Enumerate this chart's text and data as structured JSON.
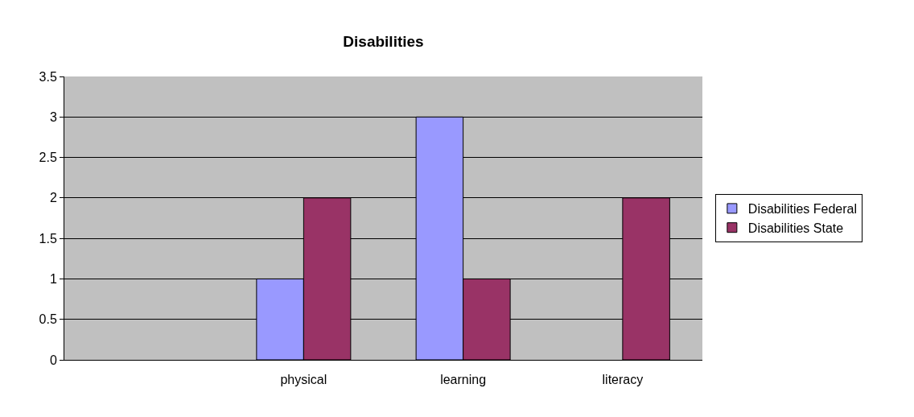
{
  "chart_data": {
    "type": "bar",
    "title": "Disabilities",
    "categories": [
      null,
      "physical",
      "learning",
      "literacy"
    ],
    "series": [
      {
        "name": "Disabilities Federal",
        "color": "#9999ff",
        "values": [
          null,
          1,
          3,
          null
        ]
      },
      {
        "name": "Disabilities State",
        "color": "#993366",
        "values": [
          null,
          2,
          1,
          2
        ]
      }
    ],
    "ylim": [
      0,
      3.5
    ],
    "yticks": [
      0,
      0.5,
      1,
      1.5,
      2,
      2.5,
      3,
      3.5
    ],
    "grid": "y",
    "legend": "right"
  }
}
